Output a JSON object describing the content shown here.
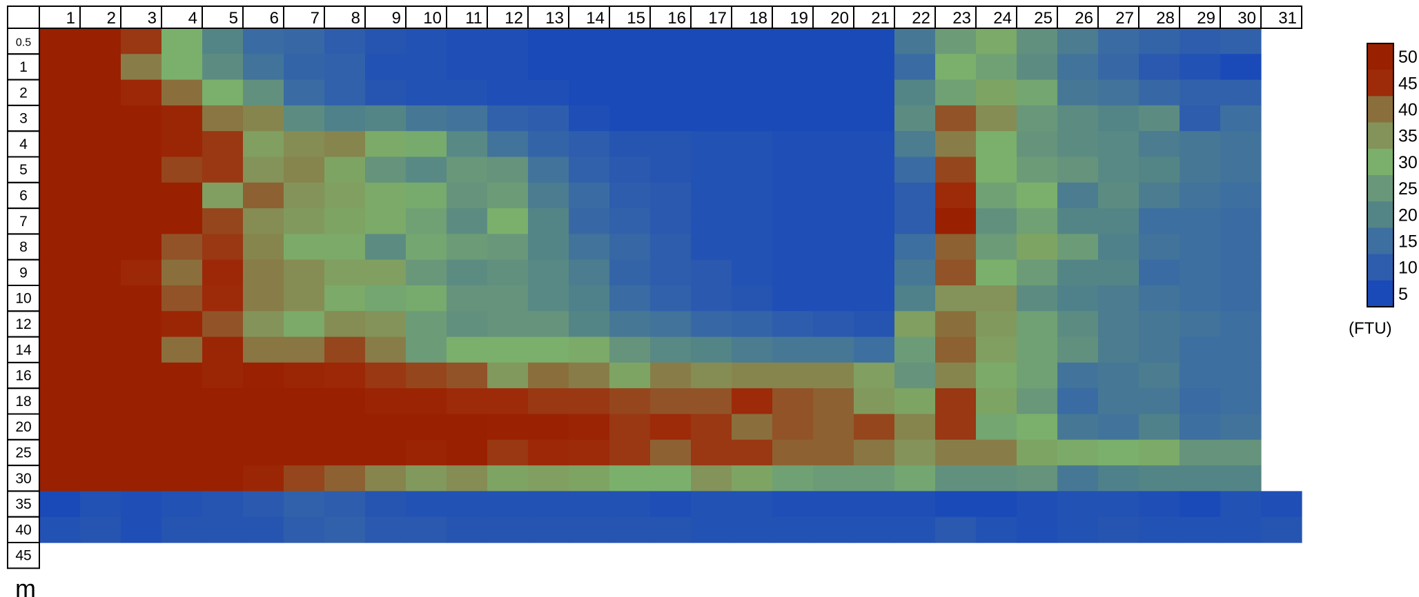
{
  "chart_data": {
    "type": "heatmap",
    "x_labels": [
      "1",
      "2",
      "3",
      "4",
      "5",
      "6",
      "7",
      "8",
      "9",
      "10",
      "11",
      "12",
      "13",
      "14",
      "15",
      "16",
      "17",
      "18",
      "19",
      "20",
      "21",
      "22",
      "23",
      "24",
      "25",
      "26",
      "27",
      "28",
      "29",
      "30",
      "31"
    ],
    "y_labels": [
      "0.5",
      "1",
      "2",
      "3",
      "4",
      "5",
      "6",
      "7",
      "8",
      "9",
      "10",
      "12",
      "14",
      "16",
      "18",
      "20",
      "25",
      "30",
      "35",
      "40",
      "45"
    ],
    "y_unit": "m",
    "colorbar": {
      "labels": [
        "50",
        "45",
        "40",
        "35",
        "30",
        "25",
        "20",
        "15",
        "10",
        "5"
      ],
      "colors": [
        "#992000",
        "#9d2a09",
        "#8a6f3c",
        "#84935a",
        "#7ab06b",
        "#69977a",
        "#548586",
        "#3d6fa0",
        "#2e5dad",
        "#1a4ab8"
      ],
      "unit": "(FTU)"
    },
    "values": [
      [
        51,
        51,
        44,
        30,
        20,
        14,
        13,
        10,
        8,
        7,
        6,
        6,
        5,
        5,
        5,
        5,
        5,
        5,
        5,
        5,
        5,
        17,
        26,
        31,
        23,
        18,
        14,
        12,
        10,
        11,
        null
      ],
      [
        51,
        51,
        38,
        30,
        22,
        16,
        12,
        11,
        7,
        7,
        6,
        6,
        5,
        5,
        5,
        5,
        5,
        5,
        5,
        5,
        5,
        14,
        30,
        27,
        22,
        16,
        13,
        9,
        7,
        5,
        null
      ],
      [
        51,
        51,
        46,
        40,
        30,
        23,
        14,
        11,
        8,
        7,
        7,
        6,
        6,
        5,
        5,
        5,
        5,
        5,
        5,
        5,
        5,
        20,
        27,
        32,
        28,
        17,
        16,
        13,
        11,
        11,
        null
      ],
      [
        51,
        51,
        51,
        47,
        39,
        37,
        22,
        19,
        20,
        17,
        16,
        11,
        10,
        6,
        5,
        5,
        5,
        5,
        5,
        5,
        5,
        22,
        42,
        36,
        25,
        22,
        20,
        22,
        10,
        15,
        null
      ],
      [
        51,
        51,
        51,
        47,
        44,
        33,
        36,
        37,
        31,
        29,
        21,
        16,
        12,
        10,
        8,
        8,
        7,
        7,
        6,
        6,
        6,
        18,
        38,
        30,
        24,
        22,
        21,
        18,
        17,
        16,
        null
      ],
      [
        51,
        51,
        51,
        43,
        44,
        35,
        37,
        32,
        24,
        21,
        25,
        24,
        16,
        11,
        9,
        8,
        7,
        7,
        6,
        6,
        6,
        14,
        43,
        30,
        26,
        24,
        21,
        20,
        17,
        16,
        null
      ],
      [
        51,
        51,
        51,
        51,
        33,
        41,
        35,
        33,
        31,
        29,
        24,
        26,
        18,
        14,
        10,
        9,
        7,
        7,
        6,
        6,
        6,
        10,
        45,
        27,
        30,
        18,
        22,
        18,
        16,
        15,
        null
      ],
      [
        51,
        51,
        51,
        51,
        43,
        36,
        34,
        32,
        31,
        27,
        22,
        30,
        20,
        13,
        11,
        9,
        7,
        7,
        6,
        6,
        6,
        10,
        51,
        23,
        27,
        20,
        20,
        15,
        15,
        14,
        null
      ],
      [
        51,
        51,
        51,
        42,
        44,
        37,
        31,
        31,
        22,
        28,
        26,
        25,
        20,
        16,
        13,
        10,
        7,
        7,
        6,
        6,
        6,
        15,
        41,
        26,
        32,
        26,
        19,
        16,
        15,
        14,
        null
      ],
      [
        51,
        51,
        46,
        40,
        46,
        38,
        36,
        33,
        33,
        25,
        22,
        23,
        21,
        18,
        12,
        10,
        9,
        7,
        6,
        6,
        6,
        17,
        42,
        30,
        26,
        20,
        20,
        14,
        15,
        14,
        null
      ],
      [
        51,
        51,
        51,
        42,
        45,
        38,
        36,
        31,
        28,
        29,
        24,
        24,
        21,
        19,
        14,
        11,
        9,
        8,
        6,
        6,
        6,
        19,
        35,
        35,
        22,
        19,
        18,
        16,
        15,
        14,
        null
      ],
      [
        51,
        51,
        51,
        47,
        42,
        35,
        31,
        36,
        35,
        26,
        23,
        24,
        24,
        20,
        17,
        16,
        13,
        12,
        10,
        9,
        8,
        33,
        40,
        34,
        27,
        22,
        18,
        17,
        16,
        15,
        null
      ],
      [
        51,
        51,
        51,
        40,
        47,
        39,
        39,
        43,
        38,
        26,
        30,
        30,
        30,
        31,
        24,
        21,
        20,
        18,
        17,
        17,
        15,
        26,
        41,
        33,
        27,
        23,
        18,
        17,
        15,
        15,
        null
      ],
      [
        51,
        51,
        51,
        51,
        47,
        49,
        47,
        46,
        44,
        43,
        42,
        34,
        40,
        38,
        32,
        38,
        36,
        37,
        37,
        37,
        33,
        24,
        37,
        31,
        27,
        16,
        17,
        18,
        15,
        15,
        null
      ],
      [
        51,
        51,
        51,
        51,
        51,
        51,
        51,
        51,
        48,
        48,
        45,
        45,
        44,
        44,
        43,
        42,
        42,
        45,
        42,
        41,
        34,
        32,
        44,
        32,
        25,
        14,
        17,
        17,
        14,
        15,
        null
      ],
      [
        51,
        51,
        51,
        51,
        51,
        51,
        51,
        51,
        51,
        51,
        50,
        49,
        49,
        48,
        44,
        45,
        44,
        40,
        42,
        41,
        43,
        37,
        44,
        28,
        30,
        17,
        16,
        19,
        15,
        16,
        null
      ],
      [
        51,
        51,
        51,
        51,
        51,
        51,
        51,
        51,
        51,
        48,
        51,
        44,
        46,
        45,
        44,
        41,
        44,
        44,
        41,
        41,
        39,
        35,
        38,
        38,
        32,
        31,
        30,
        31,
        24,
        24,
        null
      ],
      [
        51,
        51,
        51,
        51,
        51,
        47,
        43,
        41,
        37,
        34,
        36,
        32,
        33,
        32,
        30,
        30,
        35,
        32,
        27,
        26,
        26,
        28,
        23,
        23,
        24,
        17,
        19,
        20,
        20,
        20,
        null
      ],
      [
        3,
        7,
        6,
        7,
        8,
        9,
        11,
        10,
        8,
        7,
        7,
        7,
        7,
        7,
        7,
        6,
        7,
        7,
        6,
        6,
        6,
        6,
        5,
        4,
        6,
        7,
        7,
        6,
        4,
        7,
        6
      ],
      [
        7,
        8,
        6,
        8,
        8,
        8,
        10,
        11,
        9,
        9,
        8,
        8,
        8,
        8,
        8,
        8,
        7,
        7,
        7,
        7,
        7,
        7,
        9,
        7,
        6,
        7,
        8,
        7,
        7,
        7,
        8
      ],
      [
        null,
        null,
        null,
        null,
        null,
        null,
        null,
        null,
        null,
        null,
        null,
        null,
        null,
        null,
        null,
        null,
        null,
        null,
        null,
        null,
        null,
        null,
        null,
        null,
        null,
        null,
        null,
        null,
        null,
        null,
        null
      ]
    ]
  }
}
